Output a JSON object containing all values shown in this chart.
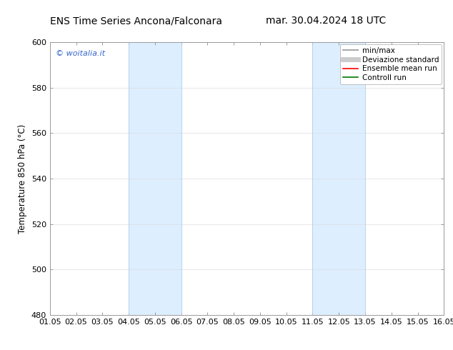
{
  "title_left": "ENS Time Series Ancona/Falconara",
  "title_right": "mar. 30.04.2024 18 UTC",
  "ylabel": "Temperature 850 hPa (°C)",
  "xlabel_ticks": [
    "01.05",
    "02.05",
    "03.05",
    "04.05",
    "05.05",
    "06.05",
    "07.05",
    "08.05",
    "09.05",
    "10.05",
    "11.05",
    "12.05",
    "13.05",
    "14.05",
    "15.05",
    "16.05"
  ],
  "ylim": [
    480,
    600
  ],
  "yticks": [
    480,
    500,
    520,
    540,
    560,
    580,
    600
  ],
  "xlim": [
    0,
    15
  ],
  "bg_color": "#ffffff",
  "plot_bg_color": "#ffffff",
  "shaded_regions": [
    {
      "xstart": 3.0,
      "xend": 5.0,
      "color": "#ddeeff"
    },
    {
      "xstart": 10.0,
      "xend": 12.0,
      "color": "#ddeeff"
    }
  ],
  "shaded_border_color": "#aaccee",
  "watermark_text": "© woitalia.it",
  "watermark_color": "#3366cc",
  "legend_items": [
    {
      "label": "min/max",
      "color": "#aaaaaa",
      "lw": 1.5
    },
    {
      "label": "Deviazione standard",
      "color": "#cccccc",
      "lw": 5
    },
    {
      "label": "Ensemble mean run",
      "color": "#ff0000",
      "lw": 1.2
    },
    {
      "label": "Controll run",
      "color": "#007700",
      "lw": 1.2
    }
  ],
  "title_fontsize": 10,
  "tick_fontsize": 8,
  "ylabel_fontsize": 8.5,
  "legend_fontsize": 7.5,
  "grid_color": "#dddddd",
  "spine_color": "#999999"
}
